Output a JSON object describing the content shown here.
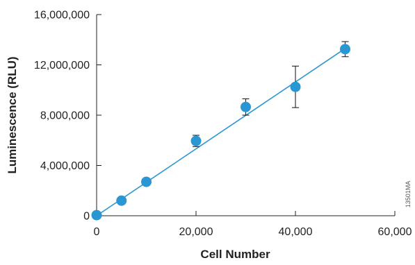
{
  "chart_data": {
    "type": "scatter",
    "title": "",
    "xlabel": "Cell Number",
    "ylabel": "Luminescence (RLU)",
    "xlim": [
      0,
      60000
    ],
    "ylim": [
      0,
      16000000
    ],
    "x_ticks": [
      0,
      20000,
      40000,
      60000
    ],
    "x_tick_labels": [
      "0",
      "20,000",
      "40,000",
      "60,000"
    ],
    "y_ticks": [
      0,
      4000000,
      8000000,
      12000000,
      16000000
    ],
    "y_tick_labels": [
      "0",
      "4,000,000",
      "8,000,000",
      "12,000,000",
      "16,000,000"
    ],
    "grid": false,
    "legend": "none",
    "series": [
      {
        "x": [
          0,
          5000,
          10000,
          20000,
          30000,
          40000,
          50000
        ],
        "y": [
          50000,
          1200000,
          2700000,
          5950000,
          8650000,
          10250000,
          13250000
        ],
        "error": [
          0,
          0,
          0,
          450000,
          650000,
          1650000,
          600000
        ],
        "color": "#2a96d4",
        "fit_line": {
          "x": [
            0,
            50000
          ],
          "y": [
            0,
            13300000
          ]
        }
      }
    ],
    "catalog_number": "13501MA"
  }
}
